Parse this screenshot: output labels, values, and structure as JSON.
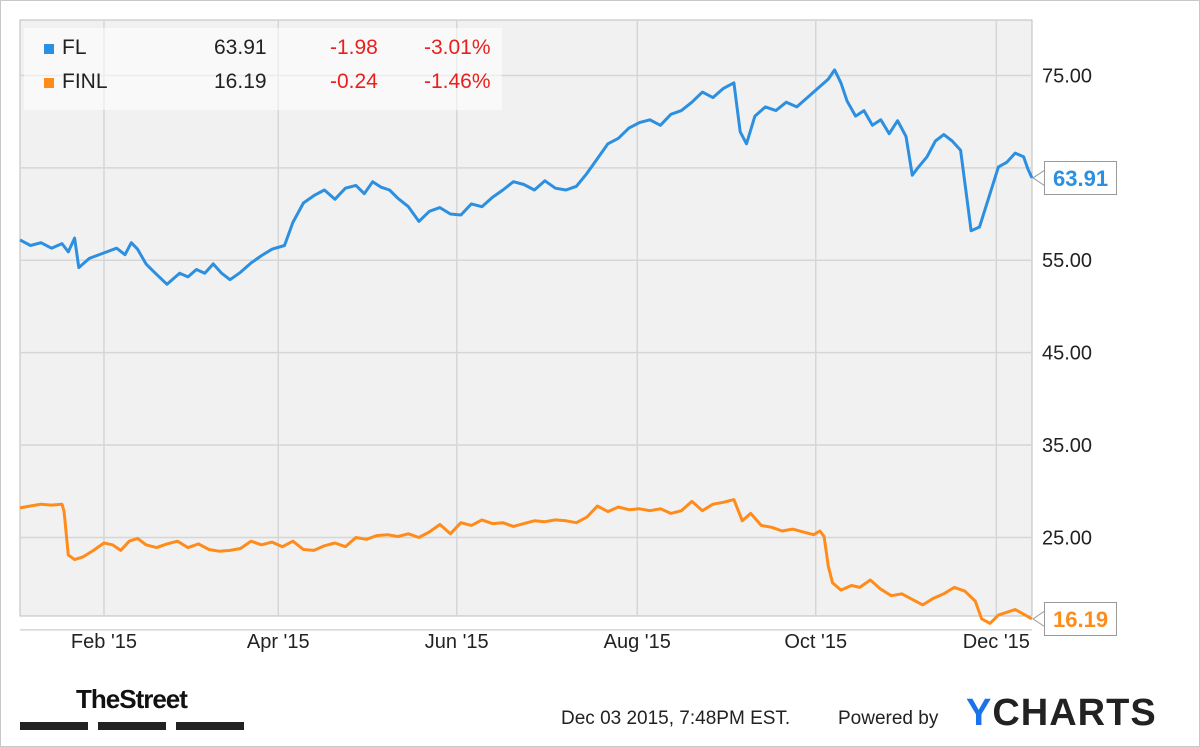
{
  "chart_data": {
    "type": "line",
    "series": [
      {
        "name": "FL",
        "color": "#2d8fe0",
        "last": "63.91",
        "change": "-1.98",
        "change_pct": "-3.01%",
        "price_label": "63.91",
        "points": [
          [
            0,
            57.2
          ],
          [
            0.5,
            56.6
          ],
          [
            1,
            56.9
          ],
          [
            1.5,
            56.3
          ],
          [
            2,
            56.8
          ],
          [
            2.3,
            55.9
          ],
          [
            2.6,
            57.4
          ],
          [
            2.8,
            54.2
          ],
          [
            3.3,
            55.2
          ],
          [
            4,
            55.8
          ],
          [
            4.6,
            56.3
          ],
          [
            5,
            55.6
          ],
          [
            5.3,
            56.9
          ],
          [
            5.6,
            56.2
          ],
          [
            6,
            54.6
          ],
          [
            6.4,
            53.7
          ],
          [
            7,
            52.4
          ],
          [
            7.6,
            53.6
          ],
          [
            8,
            53.2
          ],
          [
            8.4,
            54.0
          ],
          [
            8.8,
            53.6
          ],
          [
            9.2,
            54.6
          ],
          [
            9.6,
            53.6
          ],
          [
            10,
            52.9
          ],
          [
            10.5,
            53.7
          ],
          [
            11,
            54.7
          ],
          [
            11.5,
            55.5
          ],
          [
            12,
            56.2
          ],
          [
            12.6,
            56.6
          ],
          [
            13,
            59.1
          ],
          [
            13.5,
            61.2
          ],
          [
            14,
            62.0
          ],
          [
            14.5,
            62.6
          ],
          [
            15,
            61.6
          ],
          [
            15.5,
            62.8
          ],
          [
            16,
            63.1
          ],
          [
            16.4,
            62.2
          ],
          [
            16.8,
            63.5
          ],
          [
            17.2,
            62.9
          ],
          [
            17.6,
            62.6
          ],
          [
            18,
            61.7
          ],
          [
            18.5,
            60.8
          ],
          [
            19,
            59.2
          ],
          [
            19.5,
            60.3
          ],
          [
            20,
            60.7
          ],
          [
            20.5,
            60.0
          ],
          [
            21,
            59.9
          ],
          [
            21.5,
            61.1
          ],
          [
            22,
            60.8
          ],
          [
            22.5,
            61.8
          ],
          [
            23,
            62.6
          ],
          [
            23.5,
            63.5
          ],
          [
            24,
            63.2
          ],
          [
            24.5,
            62.6
          ],
          [
            25,
            63.6
          ],
          [
            25.5,
            62.8
          ],
          [
            26,
            62.6
          ],
          [
            26.5,
            63.0
          ],
          [
            27,
            64.4
          ],
          [
            27.5,
            66.0
          ],
          [
            28,
            67.6
          ],
          [
            28.5,
            68.2
          ],
          [
            29,
            69.3
          ],
          [
            29.5,
            69.9
          ],
          [
            30,
            70.2
          ],
          [
            30.5,
            69.6
          ],
          [
            31,
            70.8
          ],
          [
            31.5,
            71.2
          ],
          [
            32,
            72.1
          ],
          [
            32.5,
            73.2
          ],
          [
            33,
            72.6
          ],
          [
            33.5,
            73.6
          ],
          [
            34,
            74.2
          ],
          [
            34.3,
            68.9
          ],
          [
            34.6,
            67.6
          ],
          [
            35,
            70.6
          ],
          [
            35.5,
            71.6
          ],
          [
            36,
            71.2
          ],
          [
            36.5,
            72.1
          ],
          [
            37,
            71.6
          ],
          [
            37.5,
            72.6
          ],
          [
            38,
            73.6
          ],
          [
            38.5,
            74.6
          ],
          [
            38.8,
            75.6
          ],
          [
            39.1,
            74.2
          ],
          [
            39.4,
            72.2
          ],
          [
            39.8,
            70.6
          ],
          [
            40.2,
            71.2
          ],
          [
            40.6,
            69.6
          ],
          [
            41,
            70.2
          ],
          [
            41.4,
            68.7
          ],
          [
            41.8,
            70.1
          ],
          [
            42.2,
            68.4
          ],
          [
            42.5,
            64.2
          ],
          [
            42.8,
            65.1
          ],
          [
            43.2,
            66.2
          ],
          [
            43.6,
            67.9
          ],
          [
            44,
            68.6
          ],
          [
            44.4,
            67.9
          ],
          [
            44.8,
            66.9
          ],
          [
            45.1,
            61.7
          ],
          [
            45.3,
            58.2
          ],
          [
            45.7,
            58.6
          ],
          [
            46.2,
            62.2
          ],
          [
            46.6,
            65.1
          ],
          [
            47,
            65.6
          ],
          [
            47.4,
            66.6
          ],
          [
            47.8,
            66.2
          ],
          [
            48,
            64.9
          ],
          [
            48.2,
            63.91
          ]
        ]
      },
      {
        "name": "FINL",
        "color": "#ff8c1a",
        "last": "16.19",
        "change": "-0.24",
        "change_pct": "-1.46%",
        "price_label": "16.19",
        "points": [
          [
            0,
            28.2
          ],
          [
            0.5,
            28.4
          ],
          [
            1,
            28.6
          ],
          [
            1.5,
            28.5
          ],
          [
            2,
            28.6
          ],
          [
            2.1,
            27.8
          ],
          [
            2.3,
            23.1
          ],
          [
            2.6,
            22.6
          ],
          [
            3,
            22.9
          ],
          [
            3.5,
            23.6
          ],
          [
            4,
            24.4
          ],
          [
            4.4,
            24.2
          ],
          [
            4.8,
            23.6
          ],
          [
            5.2,
            24.6
          ],
          [
            5.6,
            24.9
          ],
          [
            6,
            24.2
          ],
          [
            6.5,
            23.9
          ],
          [
            7,
            24.3
          ],
          [
            7.5,
            24.6
          ],
          [
            8,
            23.9
          ],
          [
            8.5,
            24.3
          ],
          [
            9,
            23.7
          ],
          [
            9.5,
            23.5
          ],
          [
            10,
            23.6
          ],
          [
            10.5,
            23.8
          ],
          [
            11,
            24.6
          ],
          [
            11.5,
            24.2
          ],
          [
            12,
            24.5
          ],
          [
            12.5,
            24.0
          ],
          [
            13,
            24.6
          ],
          [
            13.5,
            23.7
          ],
          [
            14,
            23.6
          ],
          [
            14.5,
            24.1
          ],
          [
            15,
            24.4
          ],
          [
            15.5,
            24.0
          ],
          [
            16,
            25.0
          ],
          [
            16.5,
            24.8
          ],
          [
            17,
            25.2
          ],
          [
            17.5,
            25.3
          ],
          [
            18,
            25.1
          ],
          [
            18.5,
            25.4
          ],
          [
            19,
            25.0
          ],
          [
            19.5,
            25.6
          ],
          [
            20,
            26.4
          ],
          [
            20.5,
            25.4
          ],
          [
            21,
            26.6
          ],
          [
            21.5,
            26.3
          ],
          [
            22,
            26.9
          ],
          [
            22.5,
            26.5
          ],
          [
            23,
            26.6
          ],
          [
            23.5,
            26.2
          ],
          [
            24,
            26.5
          ],
          [
            24.5,
            26.8
          ],
          [
            25,
            26.7
          ],
          [
            25.5,
            26.9
          ],
          [
            26,
            26.8
          ],
          [
            26.5,
            26.6
          ],
          [
            27,
            27.2
          ],
          [
            27.5,
            28.4
          ],
          [
            28,
            27.8
          ],
          [
            28.5,
            28.3
          ],
          [
            29,
            28.0
          ],
          [
            29.5,
            28.1
          ],
          [
            30,
            27.9
          ],
          [
            30.5,
            28.1
          ],
          [
            31,
            27.6
          ],
          [
            31.5,
            27.9
          ],
          [
            32,
            28.9
          ],
          [
            32.5,
            27.9
          ],
          [
            33,
            28.6
          ],
          [
            33.5,
            28.8
          ],
          [
            34,
            29.1
          ],
          [
            34.4,
            26.8
          ],
          [
            34.8,
            27.6
          ],
          [
            35.3,
            26.3
          ],
          [
            35.8,
            26.1
          ],
          [
            36.3,
            25.7
          ],
          [
            36.8,
            25.9
          ],
          [
            37.3,
            25.6
          ],
          [
            37.8,
            25.3
          ],
          [
            38.1,
            25.7
          ],
          [
            38.3,
            25.1
          ],
          [
            38.5,
            21.9
          ],
          [
            38.7,
            20.1
          ],
          [
            39.1,
            19.3
          ],
          [
            39.6,
            19.8
          ],
          [
            40,
            19.6
          ],
          [
            40.5,
            20.4
          ],
          [
            41,
            19.4
          ],
          [
            41.5,
            18.7
          ],
          [
            42,
            18.9
          ],
          [
            42.5,
            18.3
          ],
          [
            43,
            17.7
          ],
          [
            43.5,
            18.4
          ],
          [
            44,
            18.9
          ],
          [
            44.5,
            19.6
          ],
          [
            45,
            19.2
          ],
          [
            45.5,
            18.1
          ],
          [
            45.8,
            16.2
          ],
          [
            46.2,
            15.7
          ],
          [
            46.6,
            16.6
          ],
          [
            47,
            16.9
          ],
          [
            47.4,
            17.2
          ],
          [
            47.8,
            16.7
          ],
          [
            48.2,
            16.19
          ]
        ]
      }
    ],
    "x_range": [
      0,
      48.2
    ],
    "x_ticks": [
      {
        "label": "Feb '15",
        "x": 4.0
      },
      {
        "label": "Apr '15",
        "x": 12.3
      },
      {
        "label": "Jun '15",
        "x": 20.8
      },
      {
        "label": "Aug '15",
        "x": 29.4
      },
      {
        "label": "Oct '15",
        "x": 37.9
      },
      {
        "label": "Dec '15",
        "x": 46.5
      }
    ],
    "y_range": [
      16.5,
      81
    ],
    "y_ticks": [
      "75.00",
      "55.00",
      "45.00",
      "35.00",
      "25.00"
    ],
    "y_gridlines": [
      75,
      65,
      55,
      45,
      35,
      25,
      15
    ],
    "grid": true,
    "legend": "top-left"
  },
  "footer": {
    "timestamp": "Dec 03 2015, 7:48PM EST.",
    "powered_by": "Powered by",
    "brand_y": "Y",
    "brand_rest": "CHARTS",
    "publisher": "TheStreet"
  },
  "colors": {
    "plot_bg": "#f1f1f1",
    "grid": "#d6d6d6",
    "negative": "#e8211d"
  }
}
